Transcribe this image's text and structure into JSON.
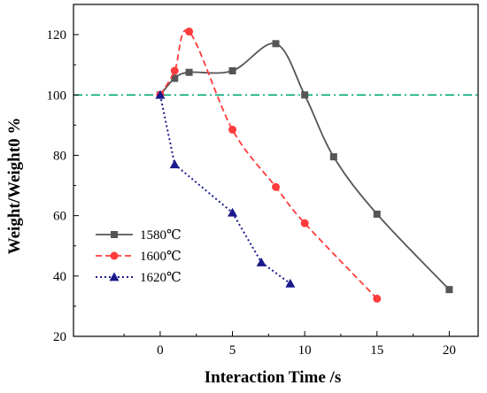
{
  "chart_data": {
    "type": "line",
    "xlabel": "Interaction Time /s",
    "ylabel": "Weight/Weight0 %",
    "xlim": [
      -6,
      22
    ],
    "ylim": [
      20,
      130
    ],
    "xticks": [
      0,
      5,
      10,
      15,
      20
    ],
    "yticks": [
      20,
      40,
      60,
      80,
      100,
      120
    ],
    "grid": false,
    "legend_position": "bottom-left",
    "reference_line": {
      "y": 100,
      "style": "dash-dot",
      "color": "#00A878"
    },
    "series": [
      {
        "name": "1580℃",
        "color": "#555555",
        "line": "solid",
        "marker": "square",
        "smooth": true,
        "x": [
          0,
          1,
          2,
          5,
          8,
          10,
          12,
          15,
          20
        ],
        "y": [
          100,
          105.5,
          107.5,
          108,
          117,
          100,
          79.5,
          60.5,
          35.5
        ]
      },
      {
        "name": "1600℃",
        "color": "#FF3B3B",
        "line": "dashed",
        "marker": "circle",
        "smooth": true,
        "x": [
          0,
          1,
          2,
          5,
          8,
          10,
          15
        ],
        "y": [
          100,
          108,
          121,
          88.5,
          69.5,
          57.5,
          32.5
        ]
      },
      {
        "name": "1620℃",
        "color": "#1A1A8C",
        "line": "dotted",
        "marker": "triangle",
        "smooth": false,
        "x": [
          0,
          1,
          5,
          7,
          9
        ],
        "y": [
          100,
          77,
          61,
          44.5,
          37.5
        ]
      }
    ]
  }
}
